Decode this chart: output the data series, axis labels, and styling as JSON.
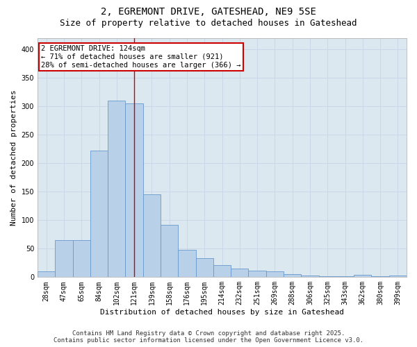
{
  "title_line1": "2, EGREMONT DRIVE, GATESHEAD, NE9 5SE",
  "title_line2": "Size of property relative to detached houses in Gateshead",
  "xlabel": "Distribution of detached houses by size in Gateshead",
  "ylabel": "Number of detached properties",
  "categories": [
    "28sqm",
    "47sqm",
    "65sqm",
    "84sqm",
    "102sqm",
    "121sqm",
    "139sqm",
    "158sqm",
    "176sqm",
    "195sqm",
    "214sqm",
    "232sqm",
    "251sqm",
    "269sqm",
    "288sqm",
    "306sqm",
    "325sqm",
    "343sqm",
    "362sqm",
    "380sqm",
    "399sqm"
  ],
  "values": [
    10,
    65,
    65,
    222,
    310,
    305,
    145,
    92,
    48,
    33,
    21,
    15,
    11,
    10,
    5,
    3,
    2,
    2,
    4,
    2,
    3
  ],
  "bar_color": "#b8d0e8",
  "bar_edgecolor": "#6699cc",
  "vline_x_index": 5,
  "annotation_text": "2 EGREMONT DRIVE: 124sqm\n← 71% of detached houses are smaller (921)\n28% of semi-detached houses are larger (366) →",
  "annotation_box_color": "#ffffff",
  "annotation_box_edgecolor": "#cc0000",
  "ylim": [
    0,
    420
  ],
  "yticks": [
    0,
    50,
    100,
    150,
    200,
    250,
    300,
    350,
    400
  ],
  "grid_color": "#c8d8e8",
  "plot_bg_color": "#dce8f0",
  "fig_bg_color": "#ffffff",
  "footer_line1": "Contains HM Land Registry data © Crown copyright and database right 2025.",
  "footer_line2": "Contains public sector information licensed under the Open Government Licence v3.0.",
  "vline_color": "#cc0000",
  "title_fontsize": 10,
  "subtitle_fontsize": 9,
  "axis_label_fontsize": 8,
  "tick_label_fontsize": 7,
  "annotation_fontsize": 7.5,
  "footer_fontsize": 6.5
}
